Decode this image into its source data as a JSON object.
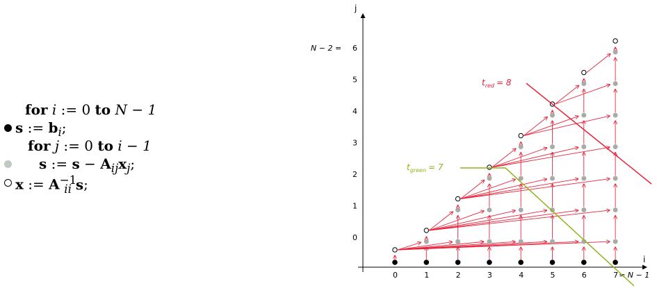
{
  "algorithm": {
    "line1": {
      "kw_for": "for",
      "var": "i",
      "assign": ":= 0",
      "kw_to": "to",
      "bound": "N − 1"
    },
    "line2": {
      "lhs": "s",
      "assign": ":=",
      "rhs": "b",
      "sub": "i",
      "end": ";"
    },
    "line3": {
      "kw_for": "for",
      "var": "j",
      "assign": ":= 0",
      "kw_to": "to",
      "bound": "i − 1"
    },
    "line4": {
      "lhs": "s",
      "assign": ":=",
      "s": "s",
      "minus": "−",
      "A": "A",
      "Asub": "ij",
      "x": "x",
      "xsub": "j",
      "end": ";"
    },
    "line5": {
      "lhs": "x",
      "assign": ":=",
      "A": "A",
      "Asup": "−1",
      "Asub": "ii",
      "s": "s",
      "end": ";"
    }
  },
  "diagram": {
    "axis_x_label": "i",
    "axis_y_label": "j",
    "x_ticks": [
      "0",
      "1",
      "2",
      "3",
      "4",
      "5",
      "6",
      "7"
    ],
    "x_tick_suffix": "= N − 1",
    "y_ticks": [
      "0",
      "1",
      "2",
      "3",
      "4",
      "5",
      "6"
    ],
    "y_tick_prefix": "N − 2 =",
    "red_label": "t",
    "red_label_sub": "red",
    "red_label_value": "= 8",
    "green_label": "t",
    "green_label_sub": "green",
    "green_label_value": "= 7",
    "colors": {
      "red": "#e8223a",
      "green": "#8fb31a",
      "gray": "#a9aba9",
      "black": "#000000"
    }
  }
}
